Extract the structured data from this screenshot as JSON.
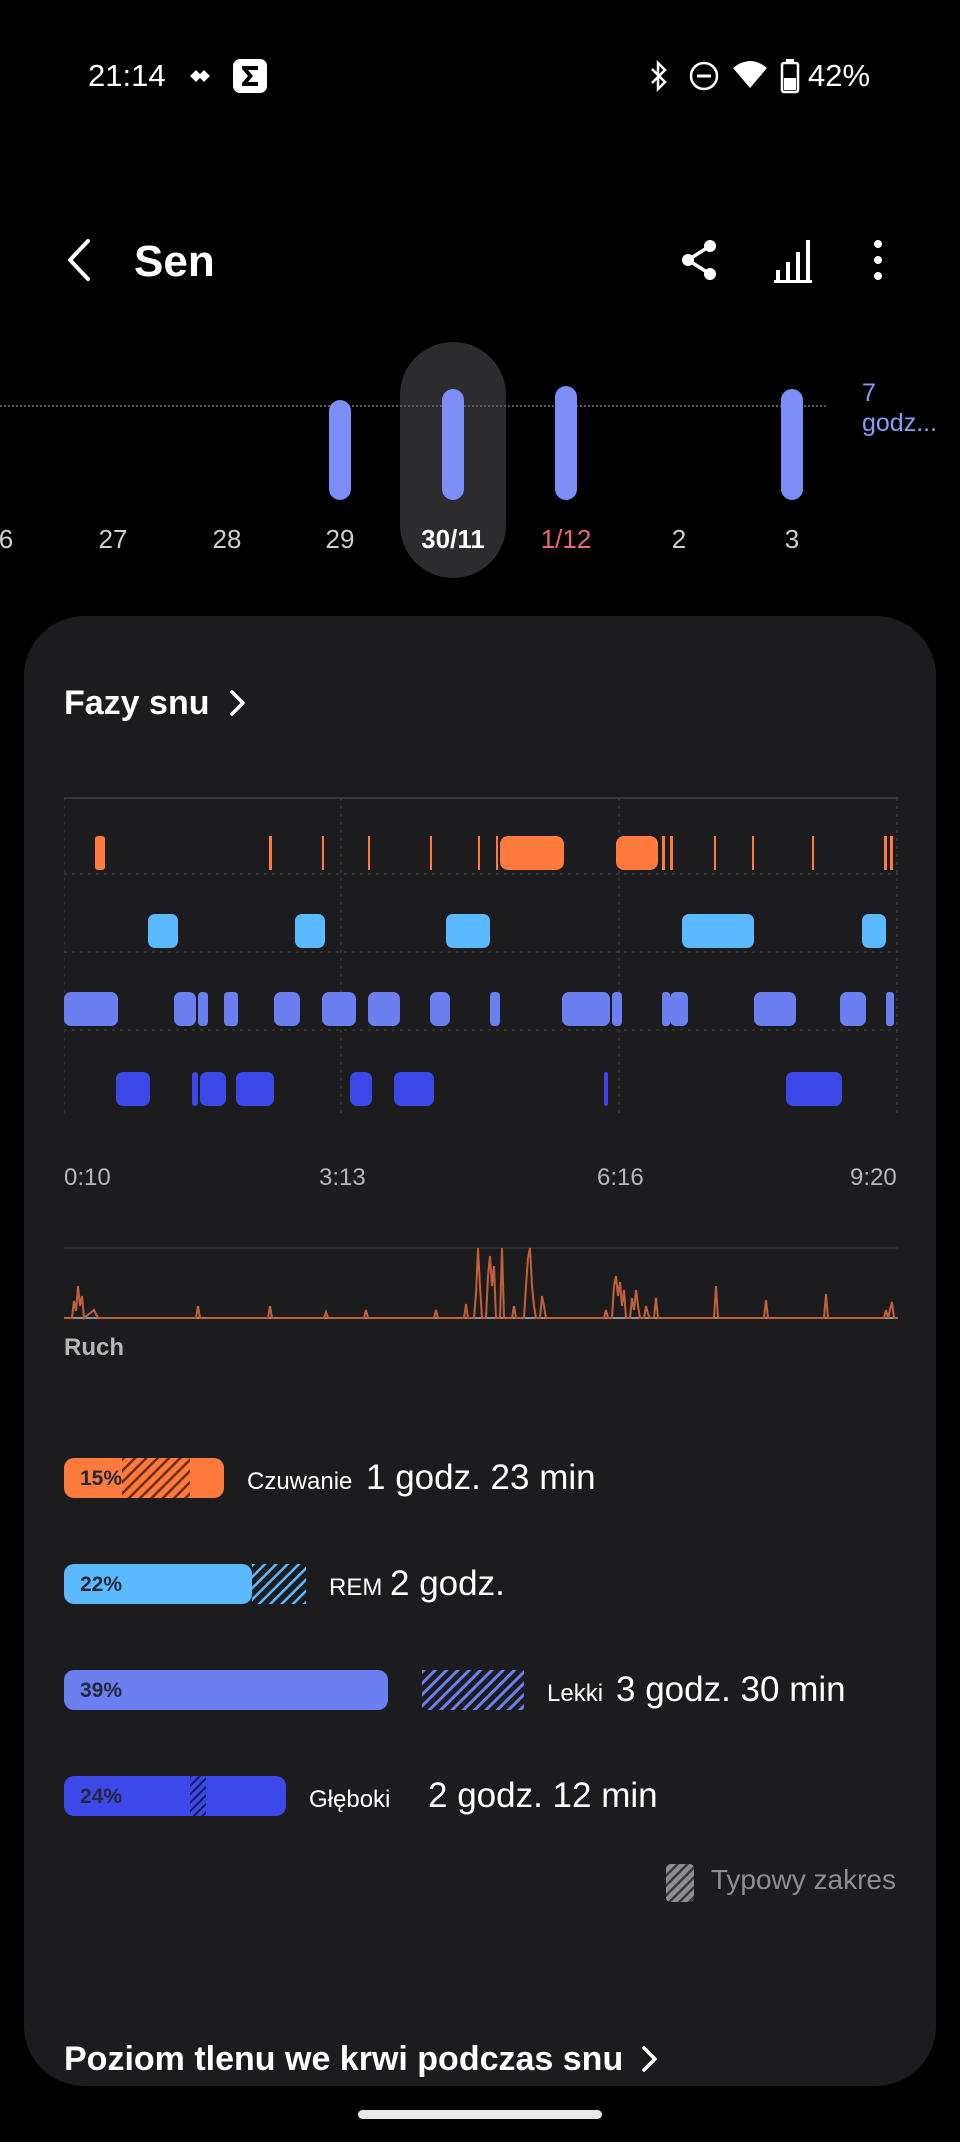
{
  "status_bar": {
    "time": "21:14",
    "battery": "42%",
    "icons": [
      "tidal-icon",
      "sigma-app-icon",
      "bluetooth-icon",
      "do-not-disturb-icon",
      "wifi-icon",
      "battery-icon"
    ]
  },
  "header": {
    "title": "Sen",
    "actions": [
      "share-icon",
      "signal-bars-icon",
      "more-vert-icon"
    ]
  },
  "date_strip": {
    "goal_label": [
      "7",
      "godz..."
    ],
    "dates": [
      {
        "label": "6",
        "state": "normal"
      },
      {
        "label": "27",
        "state": "normal"
      },
      {
        "label": "28",
        "state": "normal"
      },
      {
        "label": "29",
        "state": "normal"
      },
      {
        "label": "30/11",
        "state": "selected"
      },
      {
        "label": "1/12",
        "state": "holiday"
      },
      {
        "label": "2",
        "state": "normal"
      },
      {
        "label": "3",
        "state": "normal"
      }
    ],
    "sleep_bars_hours": {
      "29": 6.2,
      "30/11": 6.2,
      "1/12": 6.4,
      "3": 6.2
    }
  },
  "sleep_stages": {
    "title": "Fazy snu",
    "x_labels": [
      "0:10",
      "3:13",
      "6:16",
      "9:20"
    ],
    "movement_label": "Ruch",
    "stages": [
      {
        "name": "Czuwanie",
        "percent": "15%",
        "duration": "1 godz. 23 min",
        "color": "#ff7a3d",
        "pct_value": 15
      },
      {
        "name": "REM",
        "percent": "22%",
        "duration": "2 godz.",
        "color": "#5ab9ff",
        "pct_value": 22
      },
      {
        "name": "Lekki",
        "percent": "39%",
        "duration": "3 godz. 30 min",
        "color": "#6b7ff0",
        "pct_value": 39
      },
      {
        "name": "Głęboki",
        "percent": "24%",
        "duration": "2 godz. 12 min",
        "color": "#3d48e8",
        "pct_value": 24
      }
    ],
    "typical_range_label": "Typowy zakres"
  },
  "next_section": {
    "title": "Poziom tlenu we krwi podczas snu"
  }
}
